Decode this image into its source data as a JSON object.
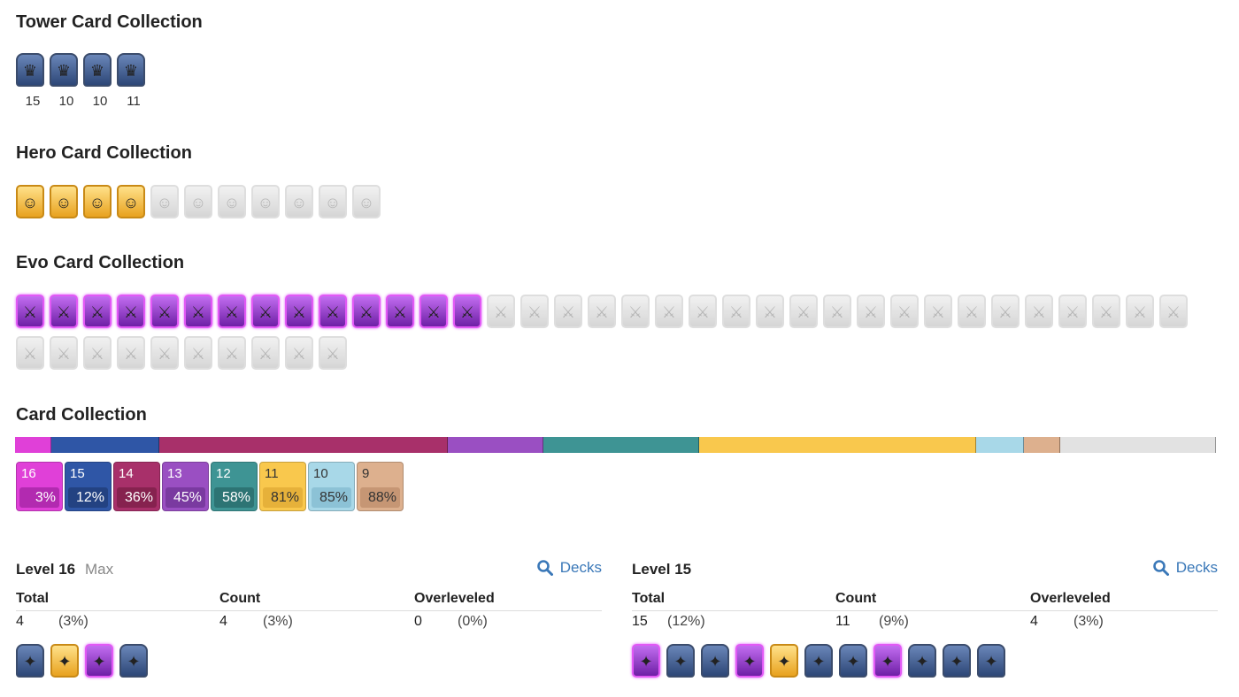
{
  "sections": {
    "tower_title": "Tower Card Collection",
    "hero_title": "Hero Card Collection",
    "evo_title": "Evo Card Collection",
    "card_title": "Card Collection"
  },
  "tower_cards": [
    {
      "icon": "princess-tower-icon",
      "level": "15"
    },
    {
      "icon": "cannoneer-tower-icon",
      "level": "10"
    },
    {
      "icon": "dagger-duchess-tower-icon",
      "level": "10"
    },
    {
      "icon": "royal-chef-tower-icon",
      "level": "11"
    }
  ],
  "hero_cards": {
    "owned": 4,
    "locked": 7
  },
  "evo_cards": {
    "owned": 14,
    "locked": 31
  },
  "level_bar": {
    "segments": [
      {
        "color": "#e040d8",
        "value": 3
      },
      {
        "color": "#2f56a6",
        "value": 9
      },
      {
        "color": "#a8306a",
        "value": 24
      },
      {
        "color": "#9a4fc2",
        "value": 8
      },
      {
        "color": "#3e9494",
        "value": 13
      },
      {
        "color": "#f9c84d",
        "value": 23
      },
      {
        "color": "#a8d8e8",
        "value": 4
      },
      {
        "color": "#ddb08e",
        "value": 3
      },
      {
        "color": "#e2e2e2",
        "value": 13
      }
    ]
  },
  "legend": [
    {
      "level": "16",
      "pct": "3%",
      "bg": "#e040d8",
      "dark": "#b22ab0",
      "fg": "#fff"
    },
    {
      "level": "15",
      "pct": "12%",
      "bg": "#2f56a6",
      "dark": "#234282",
      "fg": "#fff"
    },
    {
      "level": "14",
      "pct": "36%",
      "bg": "#a8306a",
      "dark": "#86224f",
      "fg": "#fff"
    },
    {
      "level": "13",
      "pct": "45%",
      "bg": "#9a4fc2",
      "dark": "#7a3aa0",
      "fg": "#fff"
    },
    {
      "level": "12",
      "pct": "58%",
      "bg": "#3e9494",
      "dark": "#2d7474",
      "fg": "#fff"
    },
    {
      "level": "11",
      "pct": "81%",
      "bg": "#f9c84d",
      "dark": "#e6b13a",
      "fg": "#333"
    },
    {
      "level": "10",
      "pct": "85%",
      "bg": "#a8d8e8",
      "dark": "#8cc2d6",
      "fg": "#333"
    },
    {
      "level": "9",
      "pct": "88%",
      "bg": "#ddb08e",
      "dark": "#c69674",
      "fg": "#333"
    }
  ],
  "panel_left": {
    "title": "Level 16",
    "max": "Max",
    "decks": "Decks",
    "col_total": "Total",
    "col_count": "Count",
    "col_over": "Overleveled",
    "total": "4",
    "total_pct": "(3%)",
    "count": "4",
    "count_pct": "(3%)",
    "over": "0",
    "over_pct": "(0%)",
    "cards": [
      "cannon-cart-icon",
      "golden-knight-icon",
      "mega-knight-evo-icon",
      "little-prince-icon"
    ]
  },
  "panel_right": {
    "title": "Level 15",
    "decks": "Decks",
    "col_total": "Total",
    "col_count": "Count",
    "col_over": "Overleveled",
    "total": "15",
    "total_pct": "(12%)",
    "count": "11",
    "count_pct": "(9%)",
    "over": "4",
    "over_pct": "(3%)",
    "cards": [
      "witch-evo-icon",
      "electro-spirit-icon",
      "giant-snowball-icon",
      "archers-evo-icon",
      "ice-wizard-icon",
      "fireball-icon",
      "barbarians-icon",
      "valkyrie-evo-icon",
      "skeleton-king-icon",
      "tornado-icon",
      "ram-rider-icon"
    ]
  },
  "icons": {
    "search": "search-icon"
  }
}
